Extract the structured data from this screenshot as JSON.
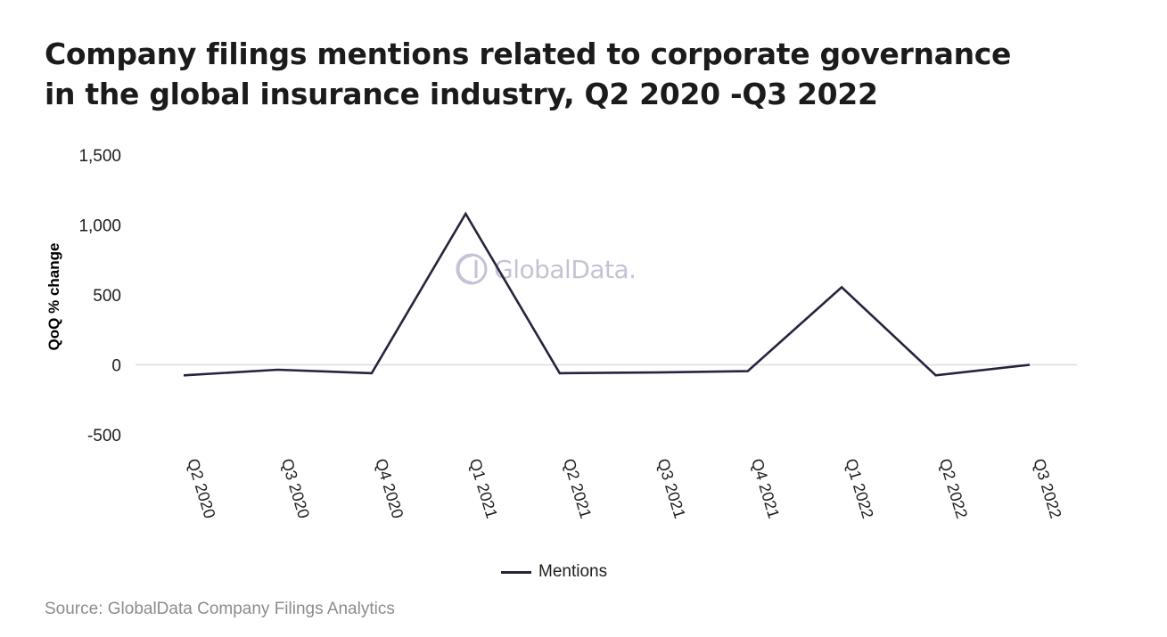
{
  "title": {
    "line1": "Company filings mentions related to corporate governance",
    "line2": "in the global insurance industry, Q2 2020 -Q3 2022"
  },
  "watermark": {
    "text": "GlobalData.",
    "icon": "globaldata-logo-icon"
  },
  "source": "Source: GlobalData Company Filings Analytics",
  "chart_data": {
    "type": "line",
    "title": "Company filings mentions related to corporate governance in the global insurance industry, Q2 2020 -Q3 2022",
    "ylabel": "QoQ % change",
    "xlabel": "",
    "categories": [
      "Q2 2020",
      "Q3 2020",
      "Q4 2020",
      "Q1 2021",
      "Q2 2021",
      "Q3 2021",
      "Q4 2021",
      "Q1 2022",
      "Q2 2022",
      "Q3 2022"
    ],
    "yticks": [
      {
        "value": 1500,
        "label": "1,500"
      },
      {
        "value": 1000,
        "label": "1,000"
      },
      {
        "value": 500,
        "label": "500"
      },
      {
        "value": 0,
        "label": "0"
      },
      {
        "value": -500,
        "label": "-500"
      }
    ],
    "ylim": [
      -500,
      1500
    ],
    "grid": false,
    "zero_line": true,
    "legend_position": "bottom",
    "series": [
      {
        "name": "Mentions",
        "color": "#26233d",
        "values": [
          -75,
          -35,
          -60,
          1080,
          -60,
          -55,
          -45,
          555,
          -75,
          0
        ]
      }
    ]
  }
}
